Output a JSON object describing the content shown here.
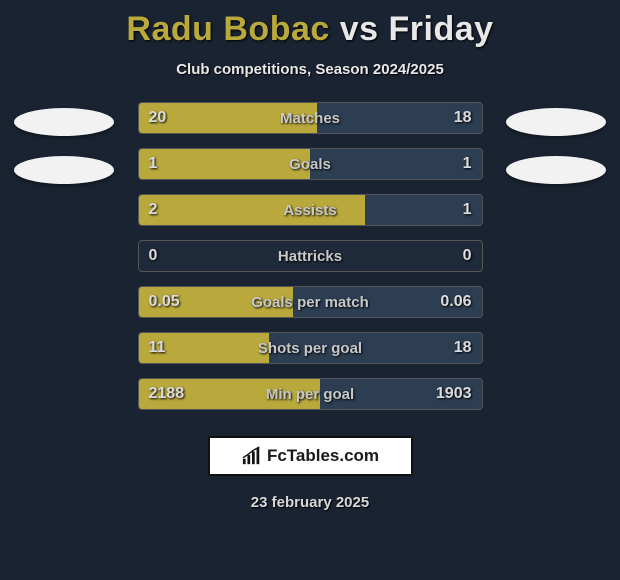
{
  "background_color": "#1a2332",
  "title": {
    "player1": "Radu Bobac",
    "vs": "vs",
    "player2": "Friday",
    "p1_color": "#b9a93d",
    "p2_color": "#e8e8e8",
    "fontsize": 34
  },
  "subtitle": "Club competitions, Season 2024/2025",
  "badges": {
    "left_count": 2,
    "right_count": 2,
    "fill": "#f2f2f2"
  },
  "bar_colors": {
    "left": "#b9a93d",
    "right": "#2d3e52",
    "border": "#555555"
  },
  "text_colors": {
    "value": "#dcdcdc",
    "label": "#c8c8c8"
  },
  "rows": [
    {
      "label": "Matches",
      "left": "20",
      "right": "18",
      "left_pct": 52,
      "right_pct": 48
    },
    {
      "label": "Goals",
      "left": "1",
      "right": "1",
      "left_pct": 50,
      "right_pct": 50
    },
    {
      "label": "Assists",
      "left": "2",
      "right": "1",
      "left_pct": 66,
      "right_pct": 34
    },
    {
      "label": "Hattricks",
      "left": "0",
      "right": "0",
      "left_pct": 0,
      "right_pct": 0
    },
    {
      "label": "Goals per match",
      "left": "0.05",
      "right": "0.06",
      "left_pct": 45,
      "right_pct": 55
    },
    {
      "label": "Shots per goal",
      "left": "11",
      "right": "18",
      "left_pct": 38,
      "right_pct": 62
    },
    {
      "label": "Min per goal",
      "left": "2188",
      "right": "1903",
      "left_pct": 53,
      "right_pct": 47
    }
  ],
  "footer": {
    "text": "FcTables.com",
    "border": "#111111",
    "bg": "#ffffff"
  },
  "date": "23 february 2025"
}
